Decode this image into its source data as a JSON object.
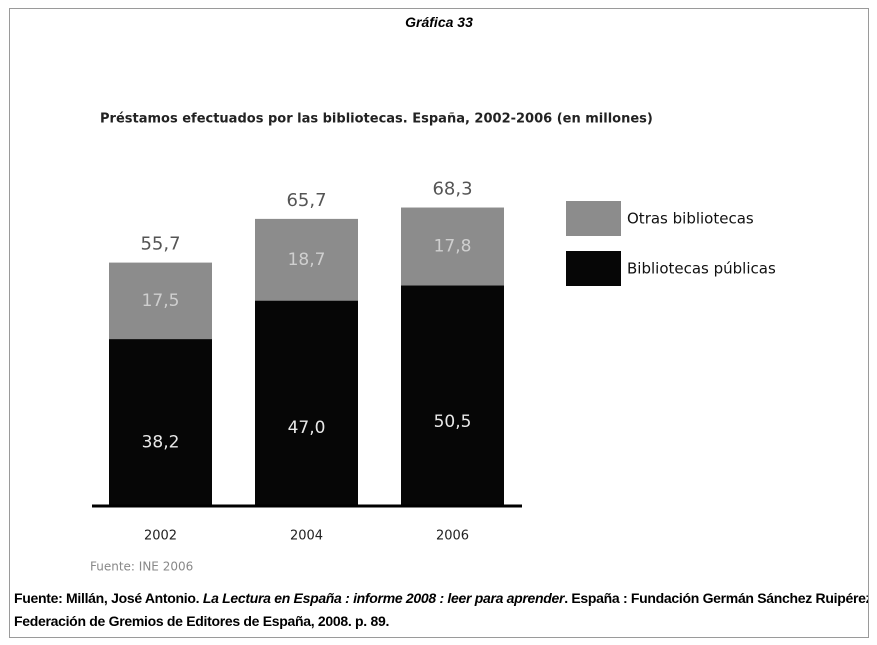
{
  "header": "Gráfica 33",
  "chart_data": {
    "type": "stacked-bar",
    "title": "Préstamos efectuados por las bibliotecas. España, 2002-2006 (en millones)",
    "categories": [
      "2002",
      "2004",
      "2006"
    ],
    "series": [
      {
        "name": "Bibliotecas públicas",
        "color": "#060606",
        "values": [
          38.2,
          47.0,
          50.5
        ],
        "value_labels": [
          "38,2",
          "47,0",
          "50,5"
        ]
      },
      {
        "name": "Otras bibliotecas",
        "color": "#8c8c8c",
        "values": [
          17.5,
          18.7,
          17.8
        ],
        "value_labels": [
          "17,5",
          "18,7",
          "17,8"
        ]
      }
    ],
    "totals": [
      55.7,
      65.7,
      68.3
    ],
    "total_labels": [
      "55,7",
      "65,7",
      "68,3"
    ],
    "source": "Fuente: INE 2006"
  },
  "footer": {
    "prefix": "Fuente: Millán, José Antonio. ",
    "title": "La Lectura en España : informe 2008 : leer para aprender",
    "suffix": ". España : Fundación Germán Sánchez Ruipérez : Federación de Gremios de Editores de España, 2008. p. 89."
  }
}
